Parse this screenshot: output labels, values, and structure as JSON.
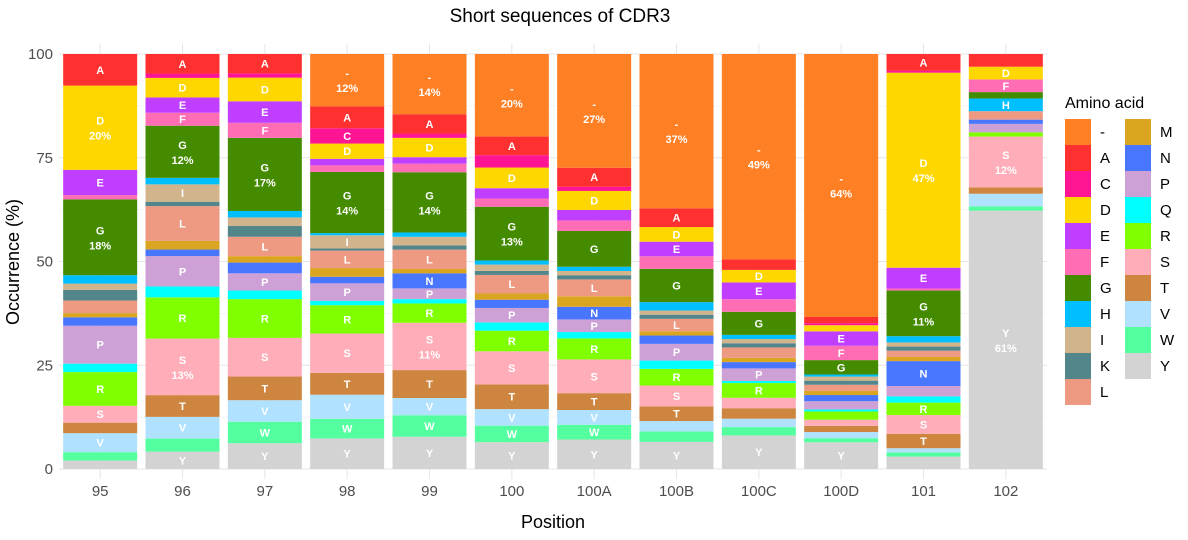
{
  "chart_data": {
    "type": "bar",
    "stacked": true,
    "title": "Short sequences of CDR3",
    "xlabel": "Position",
    "ylabel": "Occurrence (%)",
    "ylim": [
      0,
      100
    ],
    "yticks": [
      0,
      25,
      50,
      75,
      100
    ],
    "legend_title": "Amino acid",
    "legend_position": "right",
    "categories": [
      "95",
      "96",
      "97",
      "98",
      "99",
      "100",
      "100A",
      "100B",
      "100C",
      "100D",
      "101",
      "102"
    ],
    "amino_acids": [
      "-",
      "A",
      "C",
      "D",
      "E",
      "F",
      "G",
      "H",
      "I",
      "K",
      "L",
      "M",
      "N",
      "P",
      "Q",
      "R",
      "S",
      "T",
      "V",
      "W",
      "Y"
    ],
    "colors": {
      "-": "#FF7F24",
      "A": "#FF3030",
      "C": "#FF1493",
      "D": "#FFD700",
      "E": "#BF3EFF",
      "F": "#FF6EB4",
      "G": "#458B00",
      "H": "#00BFFF",
      "I": "#D2B48C",
      "K": "#53868B",
      "L": "#EE9A82",
      "M": "#DAA520",
      "N": "#4876FF",
      "P": "#CDA0D6",
      "Q": "#00FFFF",
      "R": "#7FFF00",
      "S": "#FFAEB9",
      "T": "#CD853F",
      "V": "#B0E2FF",
      "W": "#54FF9F",
      "Y": "#D3D3D3"
    },
    "series": [
      {
        "name": "-",
        "values": [
          0,
          0,
          0,
          12,
          14,
          20,
          27,
          37,
          49,
          64,
          0,
          0
        ]
      },
      {
        "name": "A",
        "values": [
          7.5,
          4.5,
          4.5,
          5,
          4.5,
          4.5,
          4.5,
          4.5,
          2.5,
          1.5,
          4,
          3
        ]
      },
      {
        "name": "C",
        "values": [
          0,
          1,
          1,
          3.5,
          1,
          3,
          1,
          0,
          0,
          0.5,
          0.5,
          0
        ]
      },
      {
        "name": "D",
        "values": [
          20,
          4.5,
          5.5,
          3.5,
          4.5,
          5,
          4.5,
          3.5,
          3,
          1.5,
          47,
          3
        ]
      },
      {
        "name": "E",
        "values": [
          6,
          3.5,
          5,
          1.5,
          1.5,
          2.5,
          2.5,
          3.5,
          4,
          3.5,
          5,
          0
        ]
      },
      {
        "name": "F",
        "values": [
          1,
          3,
          3.5,
          1.5,
          2,
          2,
          2.5,
          3,
          3,
          3.5,
          0.5,
          3
        ]
      },
      {
        "name": "G",
        "values": [
          18,
          12,
          17,
          14,
          14,
          13,
          8.5,
          8,
          5.5,
          3.5,
          11,
          1.5
        ]
      },
      {
        "name": "H",
        "values": [
          2,
          1.5,
          1.5,
          0.5,
          1,
          1,
          1,
          2,
          1,
          0.5,
          1.5,
          3
        ]
      },
      {
        "name": "I",
        "values": [
          1.5,
          4,
          2,
          3,
          2,
          1.5,
          1,
          1,
          1,
          1,
          1,
          0
        ]
      },
      {
        "name": "K",
        "values": [
          2.5,
          1,
          2.5,
          0.5,
          1,
          1,
          1,
          1,
          1,
          1,
          1,
          0
        ]
      },
      {
        "name": "L",
        "values": [
          3,
          8,
          4.5,
          4,
          4.5,
          4.5,
          4,
          3,
          2.5,
          1.5,
          1.5,
          2
        ]
      },
      {
        "name": "M",
        "values": [
          1,
          2,
          1.5,
          2,
          1,
          1.5,
          2.5,
          1,
          1,
          1,
          1,
          0
        ]
      },
      {
        "name": "N",
        "values": [
          2,
          1.5,
          2.5,
          1.5,
          3.5,
          2,
          3,
          2,
          1.5,
          1.5,
          6,
          1
        ]
      },
      {
        "name": "P",
        "values": [
          9,
          7,
          4,
          4,
          2.5,
          3.5,
          3,
          4,
          3,
          2,
          2.5,
          2
        ]
      },
      {
        "name": "Q",
        "values": [
          2,
          2.5,
          2,
          1,
          1,
          2,
          1.5,
          2,
          0.5,
          0.5,
          1.5,
          0
        ]
      },
      {
        "name": "R",
        "values": [
          8,
          9.5,
          9,
          6.5,
          4.5,
          5,
          5,
          4,
          3.5,
          2,
          3,
          1
        ]
      },
      {
        "name": "S",
        "values": [
          4,
          13,
          9,
          9,
          11,
          8,
          8,
          5,
          2.5,
          1.5,
          4.5,
          12
        ]
      },
      {
        "name": "T",
        "values": [
          2.5,
          5,
          5.5,
          5,
          6.5,
          6,
          4,
          3.5,
          2.5,
          1.5,
          3.5,
          1.5
        ]
      },
      {
        "name": "V",
        "values": [
          4.5,
          5,
          5,
          5.5,
          4,
          4,
          3.5,
          2.5,
          2,
          1.5,
          1,
          3
        ]
      },
      {
        "name": "W",
        "values": [
          2,
          3,
          5,
          4.5,
          5,
          4,
          3.5,
          2.5,
          2,
          1,
          1,
          1
        ]
      },
      {
        "name": "Y",
        "values": [
          2,
          4,
          6,
          7,
          7.5,
          6.5,
          7,
          6.5,
          8,
          6.5,
          3,
          61
        ]
      }
    ],
    "bar_labels": [
      {
        "pos": "95",
        "aa": "A",
        "text": "A"
      },
      {
        "pos": "95",
        "aa": "D",
        "text": "D",
        "pct": "20%"
      },
      {
        "pos": "95",
        "aa": "E",
        "text": "E"
      },
      {
        "pos": "95",
        "aa": "G",
        "text": "G",
        "pct": "18%"
      },
      {
        "pos": "95",
        "aa": "P",
        "text": "P"
      },
      {
        "pos": "95",
        "aa": "R",
        "text": "R"
      },
      {
        "pos": "95",
        "aa": "S",
        "text": "S"
      },
      {
        "pos": "95",
        "aa": "V",
        "text": "V"
      },
      {
        "pos": "96",
        "aa": "A",
        "text": "A"
      },
      {
        "pos": "96",
        "aa": "D",
        "text": "D"
      },
      {
        "pos": "96",
        "aa": "E",
        "text": "E"
      },
      {
        "pos": "96",
        "aa": "F",
        "text": "F"
      },
      {
        "pos": "96",
        "aa": "G",
        "text": "G",
        "pct": "12%"
      },
      {
        "pos": "96",
        "aa": "I",
        "text": "I"
      },
      {
        "pos": "96",
        "aa": "L",
        "text": "L"
      },
      {
        "pos": "96",
        "aa": "P",
        "text": "P"
      },
      {
        "pos": "96",
        "aa": "R",
        "text": "R"
      },
      {
        "pos": "96",
        "aa": "S",
        "text": "S",
        "pct": "13%"
      },
      {
        "pos": "96",
        "aa": "T",
        "text": "T"
      },
      {
        "pos": "96",
        "aa": "V",
        "text": "V"
      },
      {
        "pos": "96",
        "aa": "Y",
        "text": "Y"
      },
      {
        "pos": "97",
        "aa": "A",
        "text": "A"
      },
      {
        "pos": "97",
        "aa": "D",
        "text": "D"
      },
      {
        "pos": "97",
        "aa": "E",
        "text": "E"
      },
      {
        "pos": "97",
        "aa": "F",
        "text": "F"
      },
      {
        "pos": "97",
        "aa": "G",
        "text": "G",
        "pct": "17%"
      },
      {
        "pos": "97",
        "aa": "L",
        "text": "L"
      },
      {
        "pos": "97",
        "aa": "P",
        "text": "P"
      },
      {
        "pos": "97",
        "aa": "R",
        "text": "R"
      },
      {
        "pos": "97",
        "aa": "S",
        "text": "S"
      },
      {
        "pos": "97",
        "aa": "T",
        "text": "T"
      },
      {
        "pos": "97",
        "aa": "V",
        "text": "V"
      },
      {
        "pos": "97",
        "aa": "W",
        "text": "W"
      },
      {
        "pos": "97",
        "aa": "Y",
        "text": "Y"
      },
      {
        "pos": "98",
        "aa": "-",
        "text": "-",
        "pct": "12%"
      },
      {
        "pos": "98",
        "aa": "A",
        "text": "A"
      },
      {
        "pos": "98",
        "aa": "C",
        "text": "C"
      },
      {
        "pos": "98",
        "aa": "D",
        "text": "D"
      },
      {
        "pos": "98",
        "aa": "G",
        "text": "G",
        "pct": "14%"
      },
      {
        "pos": "98",
        "aa": "I",
        "text": "I"
      },
      {
        "pos": "98",
        "aa": "L",
        "text": "L"
      },
      {
        "pos": "98",
        "aa": "P",
        "text": "P"
      },
      {
        "pos": "98",
        "aa": "R",
        "text": "R"
      },
      {
        "pos": "98",
        "aa": "S",
        "text": "S"
      },
      {
        "pos": "98",
        "aa": "T",
        "text": "T"
      },
      {
        "pos": "98",
        "aa": "V",
        "text": "V"
      },
      {
        "pos": "98",
        "aa": "W",
        "text": "W"
      },
      {
        "pos": "98",
        "aa": "Y",
        "text": "Y"
      },
      {
        "pos": "99",
        "aa": "-",
        "text": "-",
        "pct": "14%"
      },
      {
        "pos": "99",
        "aa": "A",
        "text": "A"
      },
      {
        "pos": "99",
        "aa": "D",
        "text": "D"
      },
      {
        "pos": "99",
        "aa": "G",
        "text": "G",
        "pct": "14%"
      },
      {
        "pos": "99",
        "aa": "L",
        "text": "L"
      },
      {
        "pos": "99",
        "aa": "N",
        "text": "N"
      },
      {
        "pos": "99",
        "aa": "P",
        "text": "P"
      },
      {
        "pos": "99",
        "aa": "R",
        "text": "R"
      },
      {
        "pos": "99",
        "aa": "S",
        "text": "S",
        "pct": "11%"
      },
      {
        "pos": "99",
        "aa": "T",
        "text": "T"
      },
      {
        "pos": "99",
        "aa": "V",
        "text": "V"
      },
      {
        "pos": "99",
        "aa": "W",
        "text": "W"
      },
      {
        "pos": "99",
        "aa": "Y",
        "text": "Y"
      },
      {
        "pos": "100",
        "aa": "-",
        "text": "-",
        "pct": "20%"
      },
      {
        "pos": "100",
        "aa": "A",
        "text": "A"
      },
      {
        "pos": "100",
        "aa": "D",
        "text": "D"
      },
      {
        "pos": "100",
        "aa": "G",
        "text": "G",
        "pct": "13%"
      },
      {
        "pos": "100",
        "aa": "L",
        "text": "L"
      },
      {
        "pos": "100",
        "aa": "P",
        "text": "P"
      },
      {
        "pos": "100",
        "aa": "R",
        "text": "R"
      },
      {
        "pos": "100",
        "aa": "S",
        "text": "S"
      },
      {
        "pos": "100",
        "aa": "T",
        "text": "T"
      },
      {
        "pos": "100",
        "aa": "V",
        "text": "V"
      },
      {
        "pos": "100",
        "aa": "W",
        "text": "W"
      },
      {
        "pos": "100",
        "aa": "Y",
        "text": "Y"
      },
      {
        "pos": "100A",
        "aa": "-",
        "text": "-",
        "pct": "27%"
      },
      {
        "pos": "100A",
        "aa": "A",
        "text": "A"
      },
      {
        "pos": "100A",
        "aa": "D",
        "text": "D"
      },
      {
        "pos": "100A",
        "aa": "G",
        "text": "G"
      },
      {
        "pos": "100A",
        "aa": "L",
        "text": "L"
      },
      {
        "pos": "100A",
        "aa": "N",
        "text": "N"
      },
      {
        "pos": "100A",
        "aa": "P",
        "text": "P"
      },
      {
        "pos": "100A",
        "aa": "R",
        "text": "R"
      },
      {
        "pos": "100A",
        "aa": "S",
        "text": "S"
      },
      {
        "pos": "100A",
        "aa": "T",
        "text": "T"
      },
      {
        "pos": "100A",
        "aa": "V",
        "text": "V"
      },
      {
        "pos": "100A",
        "aa": "W",
        "text": "W"
      },
      {
        "pos": "100A",
        "aa": "Y",
        "text": "Y"
      },
      {
        "pos": "100B",
        "aa": "-",
        "text": "-",
        "pct": "37%"
      },
      {
        "pos": "100B",
        "aa": "A",
        "text": "A"
      },
      {
        "pos": "100B",
        "aa": "D",
        "text": "D"
      },
      {
        "pos": "100B",
        "aa": "E",
        "text": "E"
      },
      {
        "pos": "100B",
        "aa": "G",
        "text": "G"
      },
      {
        "pos": "100B",
        "aa": "L",
        "text": "L"
      },
      {
        "pos": "100B",
        "aa": "P",
        "text": "P"
      },
      {
        "pos": "100B",
        "aa": "R",
        "text": "R"
      },
      {
        "pos": "100B",
        "aa": "S",
        "text": "S"
      },
      {
        "pos": "100B",
        "aa": "T",
        "text": "T"
      },
      {
        "pos": "100B",
        "aa": "Y",
        "text": "Y"
      },
      {
        "pos": "100C",
        "aa": "-",
        "text": "-",
        "pct": "49%"
      },
      {
        "pos": "100C",
        "aa": "D",
        "text": "D"
      },
      {
        "pos": "100C",
        "aa": "E",
        "text": "E"
      },
      {
        "pos": "100C",
        "aa": "G",
        "text": "G"
      },
      {
        "pos": "100C",
        "aa": "P",
        "text": "P"
      },
      {
        "pos": "100C",
        "aa": "R",
        "text": "R"
      },
      {
        "pos": "100C",
        "aa": "Y",
        "text": "Y"
      },
      {
        "pos": "100D",
        "aa": "-",
        "text": "-",
        "pct": "64%"
      },
      {
        "pos": "100D",
        "aa": "E",
        "text": "E"
      },
      {
        "pos": "100D",
        "aa": "F",
        "text": "F"
      },
      {
        "pos": "100D",
        "aa": "G",
        "text": "G"
      },
      {
        "pos": "100D",
        "aa": "Y",
        "text": "Y"
      },
      {
        "pos": "101",
        "aa": "A",
        "text": "A"
      },
      {
        "pos": "101",
        "aa": "D",
        "text": "D",
        "pct": "47%"
      },
      {
        "pos": "101",
        "aa": "E",
        "text": "E"
      },
      {
        "pos": "101",
        "aa": "G",
        "text": "G",
        "pct": "11%"
      },
      {
        "pos": "101",
        "aa": "N",
        "text": "N"
      },
      {
        "pos": "101",
        "aa": "R",
        "text": "R"
      },
      {
        "pos": "101",
        "aa": "S",
        "text": "S"
      },
      {
        "pos": "101",
        "aa": "T",
        "text": "T"
      },
      {
        "pos": "102",
        "aa": "D",
        "text": "D"
      },
      {
        "pos": "102",
        "aa": "F",
        "text": "F"
      },
      {
        "pos": "102",
        "aa": "H",
        "text": "H"
      },
      {
        "pos": "102",
        "aa": "S",
        "text": "S",
        "pct": "12%"
      },
      {
        "pos": "102",
        "aa": "Y",
        "text": "Y",
        "pct": "61%"
      }
    ]
  }
}
